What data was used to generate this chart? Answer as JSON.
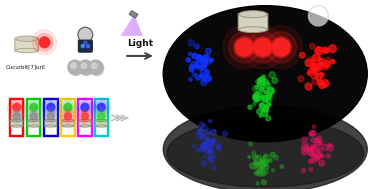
{
  "title": "",
  "bg_color": "#ffffff",
  "fig_width": 3.71,
  "fig_height": 1.89,
  "dpi": 100,
  "cucurbit_label": "Cucurbit[7]uril",
  "light_label": "Light",
  "panel_colors": [
    "#ff0000",
    "#00cc00",
    "#0000dd",
    "#ffcc00",
    "#ff00ff",
    "#00cccc"
  ],
  "dot_colors_per_panel": [
    [
      "#ff3333",
      "#888888"
    ],
    [
      "#33cc33",
      "#888888"
    ],
    [
      "#3333ff",
      "#888888"
    ],
    [
      "#33cc33",
      "#ff3333"
    ],
    [
      "#3333ff",
      "#ff3333"
    ],
    [
      "#3333ff",
      "#33cc33"
    ]
  ],
  "cb7_color": "#dddbc8",
  "cb7_outline": "#aaa88a"
}
